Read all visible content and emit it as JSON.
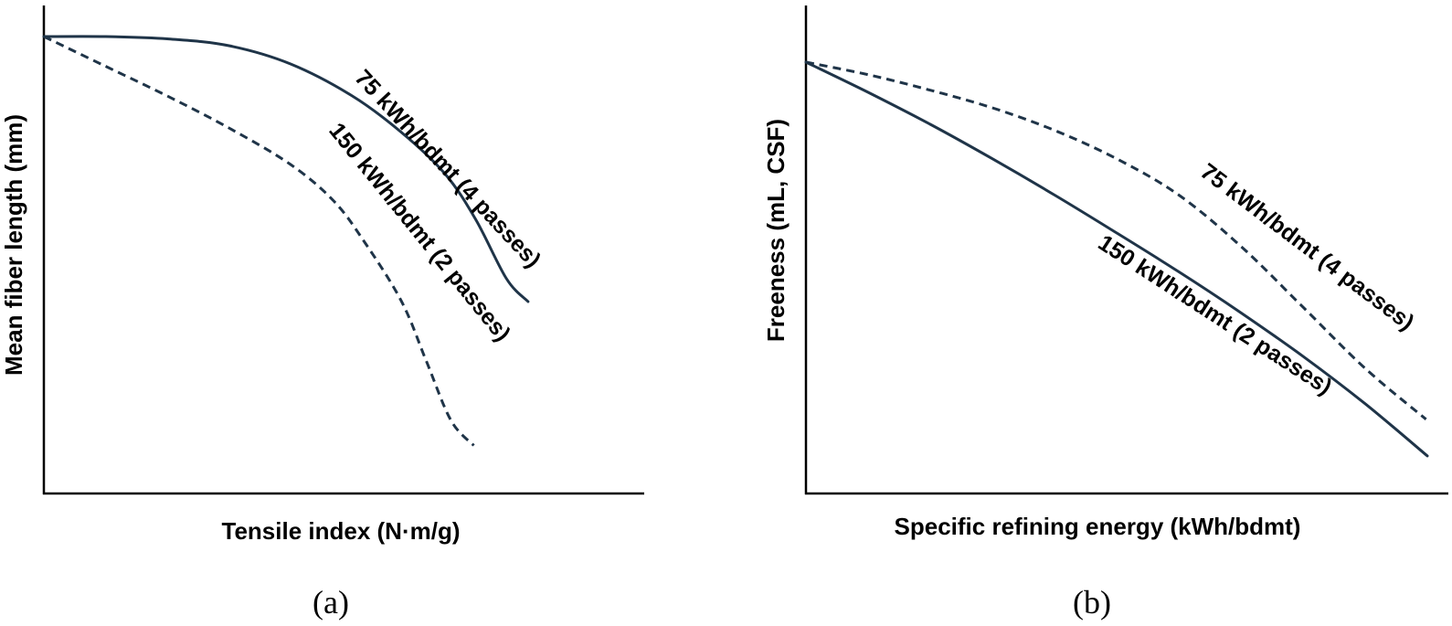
{
  "colors": {
    "axis": "#000000",
    "series": "#1f3448"
  },
  "chart_data": [
    {
      "type": "line",
      "panel_label": "(a)",
      "xlabel": "Tensile index (N·m/g)",
      "ylabel": "Mean fiber length (mm)",
      "xlim": [
        0,
        100
      ],
      "ylim": [
        0,
        100
      ],
      "grid": false,
      "ticks": false,
      "series": [
        {
          "name": "75 kWh/bdmt (4 passes)",
          "style": "solid",
          "x": [
            0,
            10,
            20,
            30,
            40,
            50,
            58,
            65,
            70,
            75,
            78.5
          ],
          "y": [
            100,
            100,
            99.5,
            98,
            94,
            87,
            79,
            70,
            60,
            47,
            42
          ]
        },
        {
          "name": "150 kWh/bdmt (2 passes)",
          "style": "dashed",
          "x": [
            0,
            10,
            20,
            30,
            40,
            47,
            52,
            58,
            62,
            66,
            69.7
          ],
          "y": [
            100,
            93.5,
            87,
            80,
            72,
            64,
            55,
            42,
            29,
            16,
            10.5
          ]
        }
      ]
    },
    {
      "type": "line",
      "panel_label": "(b)",
      "xlabel": "Specific refining energy (kWh/bdmt)",
      "ylabel": "Freeness  (mL, CSF)",
      "xlim": [
        0,
        100
      ],
      "ylim": [
        0,
        100
      ],
      "grid": false,
      "ticks": false,
      "series": [
        {
          "name": "75 kWh/bdmt (4 passes)",
          "style": "dashed",
          "x": [
            0,
            10,
            20,
            30,
            40,
            50,
            60,
            70,
            80,
            90,
            99.8
          ],
          "y": [
            100,
            97.1,
            93.5,
            89.4,
            84.2,
            77.6,
            69.2,
            57.3,
            43.2,
            29.0,
            17.2
          ]
        },
        {
          "name": "150 kWh/bdmt (2 passes)",
          "style": "solid",
          "x": [
            0,
            10,
            20,
            30,
            40,
            50,
            60,
            70,
            80,
            90,
            100
          ],
          "y": [
            100,
            93.0,
            85.6,
            77.6,
            69.2,
            60.4,
            51.4,
            41.9,
            31.8,
            20.8,
            8.7
          ]
        }
      ]
    }
  ]
}
